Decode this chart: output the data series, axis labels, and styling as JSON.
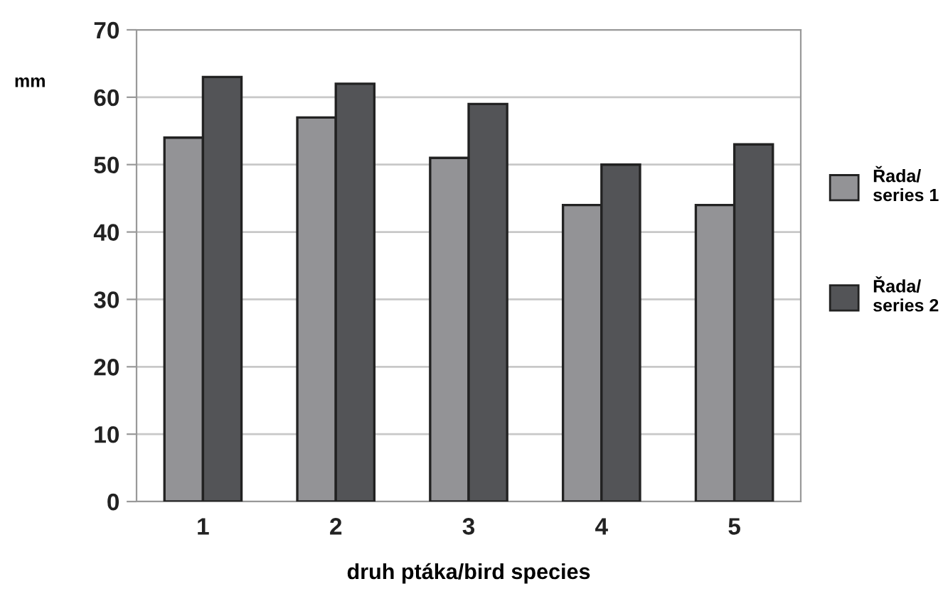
{
  "chart_data": {
    "type": "bar",
    "categories": [
      "1",
      "2",
      "3",
      "4",
      "5"
    ],
    "series": [
      {
        "name": "Řada/\nseries 1",
        "color": "#939396",
        "values": [
          54,
          57,
          51,
          44,
          44
        ]
      },
      {
        "name": "Řada/\nseries 2",
        "color": "#535457",
        "values": [
          63,
          62,
          59,
          50,
          53
        ]
      }
    ],
    "xlabel": "druh ptáka/bird species",
    "ylabel": "mm",
    "ylim": [
      0,
      70
    ],
    "yticks": [
      0,
      10,
      20,
      30,
      40,
      50,
      60,
      70
    ],
    "grid": "y",
    "legend": "right"
  }
}
